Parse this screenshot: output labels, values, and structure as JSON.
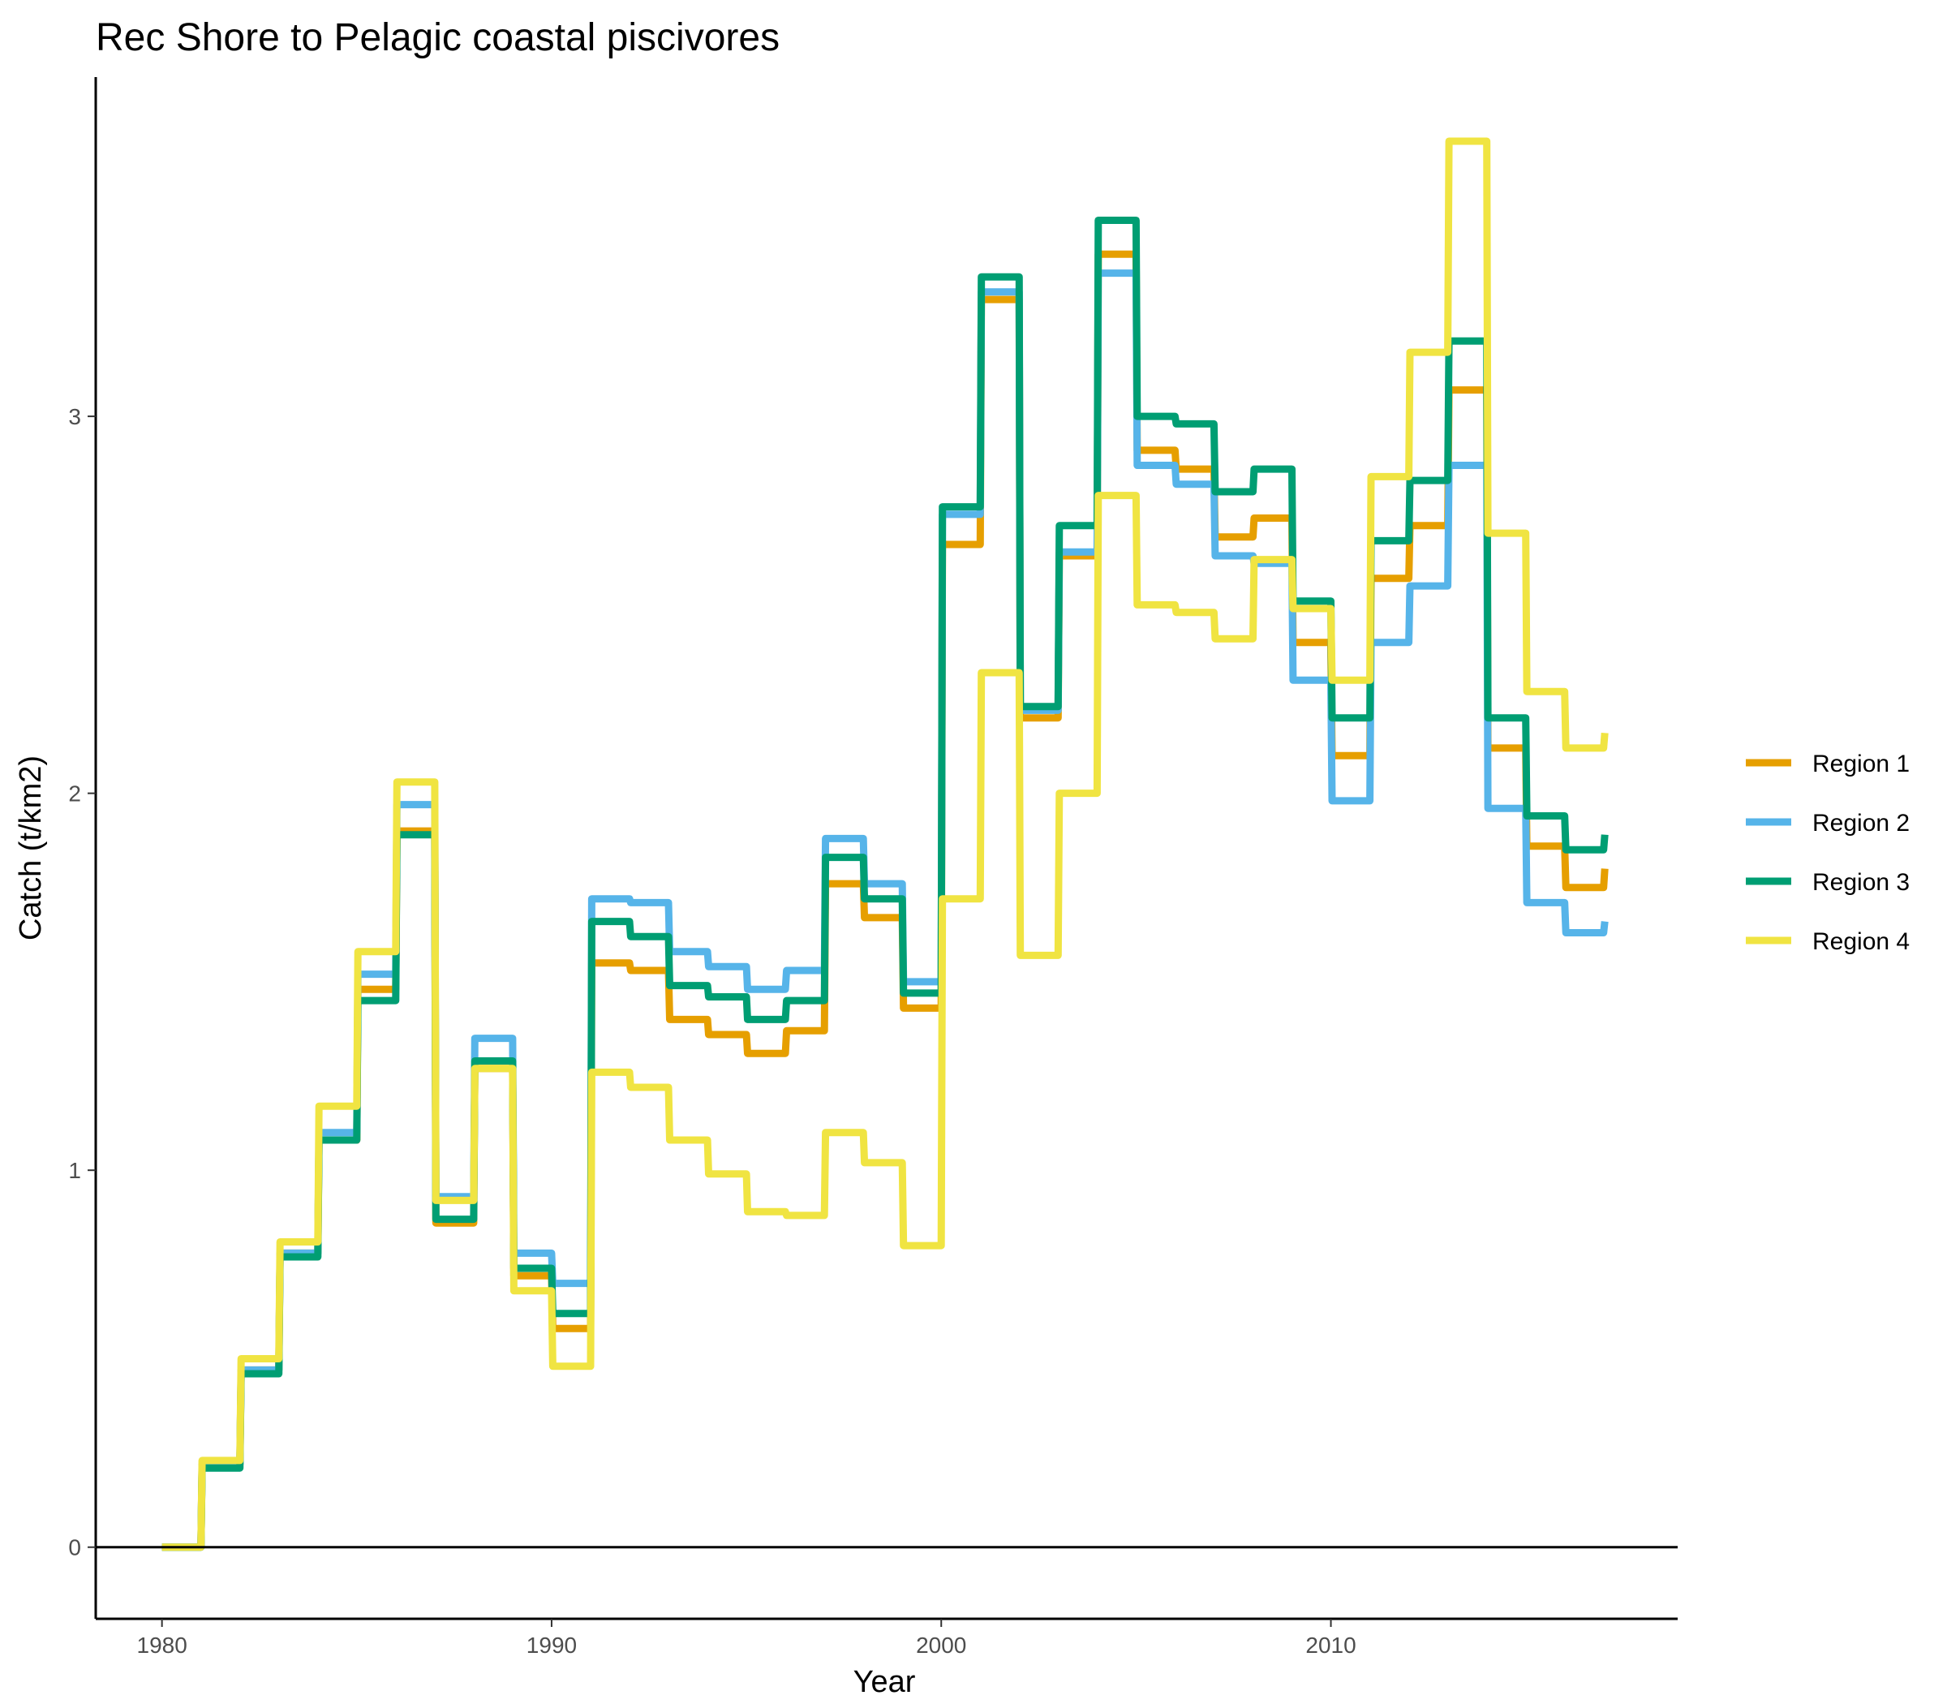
{
  "chart_data": {
    "type": "line",
    "title": "Rec Shore to Pelagic coastal piscivores",
    "xlabel": "Year",
    "ylabel": "Catch (t/km2)",
    "xlim": [
      1978.3,
      2018.9
    ],
    "ylim": [
      -0.19,
      3.9
    ],
    "x_ticks": [
      1980,
      1990,
      2000,
      2010
    ],
    "y_ticks": [
      0,
      1,
      2,
      3
    ],
    "grid": false,
    "legend_position": "right",
    "x": [
      1980,
      1981,
      1982,
      1983,
      1984,
      1985,
      1986,
      1987,
      1988,
      1989,
      1990,
      1991,
      1992,
      1993,
      1994,
      1995,
      1996,
      1997,
      1998,
      1999,
      2000,
      2001,
      2002,
      2003,
      2004,
      2005,
      2006,
      2007,
      2008,
      2009,
      2010,
      2011,
      2012,
      2013,
      2014,
      2015,
      2016,
      2017
    ],
    "series": [
      {
        "name": "Region 1",
        "color": "#E69F00",
        "values": [
          0.0,
          0.22,
          0.47,
          0.78,
          1.08,
          1.48,
          1.9,
          0.86,
          1.27,
          0.72,
          0.58,
          1.55,
          1.53,
          1.4,
          1.36,
          1.31,
          1.37,
          1.76,
          1.67,
          1.43,
          2.66,
          3.31,
          2.2,
          2.63,
          3.43,
          2.91,
          2.86,
          2.68,
          2.73,
          2.4,
          2.1,
          2.57,
          2.71,
          3.07,
          2.12,
          1.86,
          1.75,
          1.8
        ]
      },
      {
        "name": "Region 2",
        "color": "#56B4E9",
        "values": [
          0.0,
          0.22,
          0.47,
          0.78,
          1.1,
          1.52,
          1.97,
          0.93,
          1.35,
          0.78,
          0.7,
          1.72,
          1.71,
          1.58,
          1.54,
          1.48,
          1.53,
          1.88,
          1.76,
          1.5,
          2.74,
          3.33,
          2.22,
          2.64,
          3.38,
          2.87,
          2.82,
          2.63,
          2.61,
          2.3,
          1.98,
          2.4,
          2.55,
          2.87,
          1.96,
          1.71,
          1.63,
          1.66
        ]
      },
      {
        "name": "Region 3",
        "color": "#009E73",
        "values": [
          0.0,
          0.21,
          0.46,
          0.77,
          1.08,
          1.45,
          1.89,
          0.87,
          1.29,
          0.74,
          0.62,
          1.66,
          1.62,
          1.49,
          1.46,
          1.4,
          1.45,
          1.83,
          1.72,
          1.47,
          2.76,
          3.37,
          2.23,
          2.71,
          3.52,
          3.0,
          2.98,
          2.8,
          2.86,
          2.51,
          2.2,
          2.67,
          2.83,
          3.2,
          2.2,
          1.94,
          1.85,
          1.89
        ]
      },
      {
        "name": "Region 4",
        "color": "#F0E442",
        "values": [
          0.0,
          0.23,
          0.5,
          0.81,
          1.17,
          1.58,
          2.03,
          0.92,
          1.27,
          0.68,
          0.48,
          1.26,
          1.22,
          1.08,
          0.99,
          0.89,
          0.88,
          1.1,
          1.02,
          0.8,
          1.72,
          2.32,
          1.57,
          2.0,
          2.79,
          2.5,
          2.48,
          2.41,
          2.62,
          2.49,
          2.3,
          2.84,
          3.17,
          3.73,
          2.69,
          2.27,
          2.12,
          2.16
        ]
      }
    ]
  }
}
